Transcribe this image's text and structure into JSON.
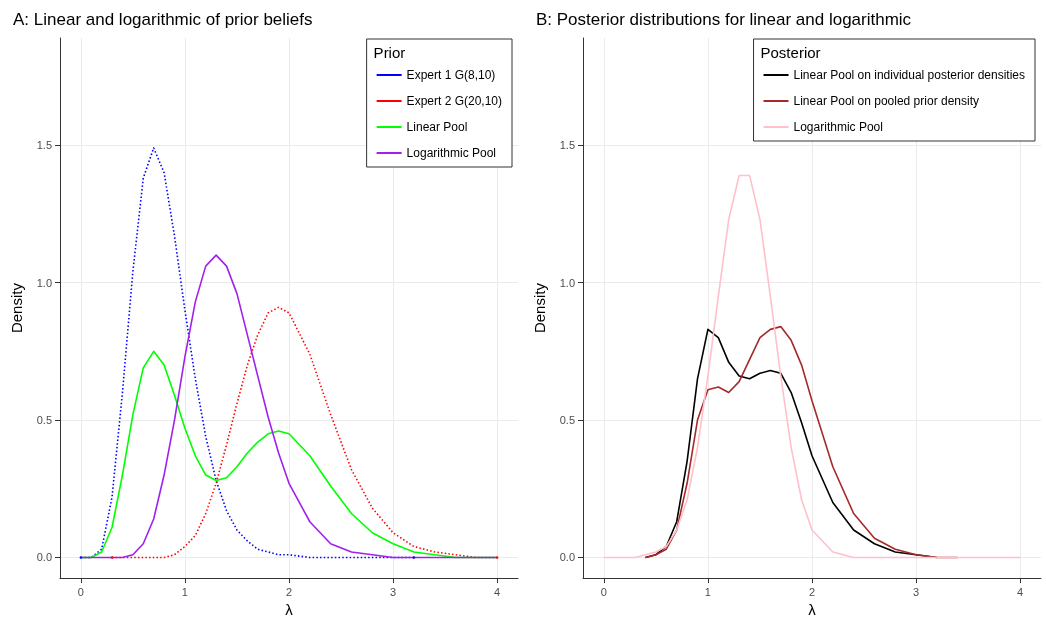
{
  "chart_data": [
    {
      "type": "line",
      "title": "A: Linear and logarithmic of prior beliefs",
      "xlabel": "λ",
      "ylabel": "Density",
      "legend_title": "Prior",
      "legend": "top right",
      "grid": true,
      "x": [
        0,
        0.1,
        0.2,
        0.3,
        0.4,
        0.5,
        0.6,
        0.7,
        0.8,
        0.9,
        1.0,
        1.1,
        1.2,
        1.3,
        1.4,
        1.5,
        1.6,
        1.7,
        1.8,
        1.9,
        2.0,
        2.2,
        2.4,
        2.6,
        2.8,
        3.0,
        3.2,
        3.4,
        3.6,
        3.8,
        4.0
      ],
      "xlim": [
        -0.2,
        4.2
      ],
      "xticks": [
        0,
        1,
        2,
        3,
        4
      ],
      "ylim": [
        -0.075,
        1.89
      ],
      "yticks": [
        {
          "value": 0,
          "label": "0.0"
        },
        {
          "value": 0.5,
          "label": "0.5"
        },
        {
          "value": 1,
          "label": "1.0"
        },
        {
          "value": 1.5,
          "label": "1.5"
        }
      ],
      "series": [
        {
          "name": "Expert 1 G(8,10)",
          "color": "#0000ff",
          "line_style": "dotted",
          "values": [
            0,
            0,
            0.03,
            0.22,
            0.6,
            1.04,
            1.38,
            1.49,
            1.4,
            1.17,
            0.9,
            0.65,
            0.44,
            0.28,
            0.17,
            0.1,
            0.06,
            0.03,
            0.02,
            0.01,
            0.01,
            0,
            0,
            0,
            0,
            0,
            0,
            null,
            null,
            null,
            null
          ]
        },
        {
          "name": "Expert 2 G(20,10)",
          "color": "#ff0000",
          "line_style": "dotted",
          "values": [
            null,
            null,
            null,
            0,
            0,
            0,
            0,
            0,
            0,
            0.01,
            0.04,
            0.08,
            0.16,
            0.27,
            0.41,
            0.56,
            0.7,
            0.81,
            0.89,
            0.91,
            0.89,
            0.74,
            0.52,
            0.32,
            0.18,
            0.09,
            0.04,
            0.02,
            0.01,
            0,
            0
          ]
        },
        {
          "name": "Linear Pool",
          "color": "#00ff00",
          "line_style": "solid",
          "values": [
            0,
            0,
            0.02,
            0.11,
            0.3,
            0.52,
            0.69,
            0.75,
            0.7,
            0.59,
            0.47,
            0.37,
            0.3,
            0.28,
            0.29,
            0.33,
            0.38,
            0.42,
            0.45,
            0.46,
            0.45,
            0.37,
            0.26,
            0.16,
            0.09,
            0.05,
            0.02,
            0.01,
            0,
            0,
            0
          ]
        },
        {
          "name": "Logarithmic Pool",
          "color": "#a020f0",
          "line_style": "solid",
          "values": [
            0,
            0,
            0,
            0,
            0,
            0.01,
            0.05,
            0.14,
            0.3,
            0.5,
            0.73,
            0.93,
            1.06,
            1.1,
            1.06,
            0.96,
            0.81,
            0.66,
            0.51,
            0.38,
            0.27,
            0.13,
            0.05,
            0.02,
            0.01,
            0,
            0,
            0,
            0,
            0,
            0
          ]
        }
      ]
    },
    {
      "type": "line",
      "title": "B: Posterior distributions for linear and logarithmic",
      "xlabel": "λ",
      "ylabel": "Density",
      "legend_title": "Posterior",
      "legend": "top right",
      "grid": true,
      "x": [
        0,
        0.1,
        0.2,
        0.3,
        0.4,
        0.5,
        0.6,
        0.7,
        0.8,
        0.9,
        1.0,
        1.1,
        1.2,
        1.3,
        1.4,
        1.5,
        1.6,
        1.7,
        1.8,
        1.9,
        2.0,
        2.2,
        2.4,
        2.6,
        2.8,
        3.0,
        3.2,
        3.4,
        3.6,
        3.8,
        4.0
      ],
      "xlim": [
        -0.2,
        4.2
      ],
      "xticks": [
        0,
        1,
        2,
        3,
        4
      ],
      "ylim": [
        -0.075,
        1.89
      ],
      "yticks": [
        {
          "value": 0,
          "label": "0.0"
        },
        {
          "value": 0.5,
          "label": "0.5"
        },
        {
          "value": 1,
          "label": "1.0"
        },
        {
          "value": 1.5,
          "label": "1.5"
        }
      ],
      "series": [
        {
          "name": "Linear Pool on individual posterior densities",
          "color": "#000000",
          "line_style": "solid",
          "values": [
            null,
            null,
            null,
            null,
            0,
            0.01,
            0.04,
            0.13,
            0.35,
            0.65,
            0.83,
            0.8,
            0.71,
            0.66,
            0.65,
            0.67,
            0.68,
            0.67,
            0.6,
            0.49,
            0.37,
            0.2,
            0.1,
            0.05,
            0.02,
            0.01,
            0,
            null,
            null,
            null,
            null
          ]
        },
        {
          "name": "Linear Pool on pooled prior density",
          "color": "#a52a2a",
          "line_style": "solid",
          "values": [
            null,
            null,
            null,
            null,
            0,
            0.01,
            0.03,
            0.1,
            0.27,
            0.5,
            0.61,
            0.62,
            0.6,
            0.64,
            0.72,
            0.8,
            0.83,
            0.84,
            0.79,
            0.7,
            0.57,
            0.33,
            0.16,
            0.07,
            0.03,
            0.01,
            0,
            0,
            null,
            null,
            null
          ]
        },
        {
          "name": "Logarithmic Pool",
          "color": "#ffc0cb",
          "line_style": "solid",
          "values": [
            0,
            0,
            0,
            0,
            0.01,
            0.02,
            0.04,
            0.1,
            0.21,
            0.4,
            0.66,
            0.95,
            1.23,
            1.39,
            1.39,
            1.23,
            0.95,
            0.66,
            0.4,
            0.21,
            0.1,
            0.02,
            0,
            0,
            0,
            0,
            0,
            0,
            0,
            0,
            0
          ]
        }
      ]
    }
  ]
}
